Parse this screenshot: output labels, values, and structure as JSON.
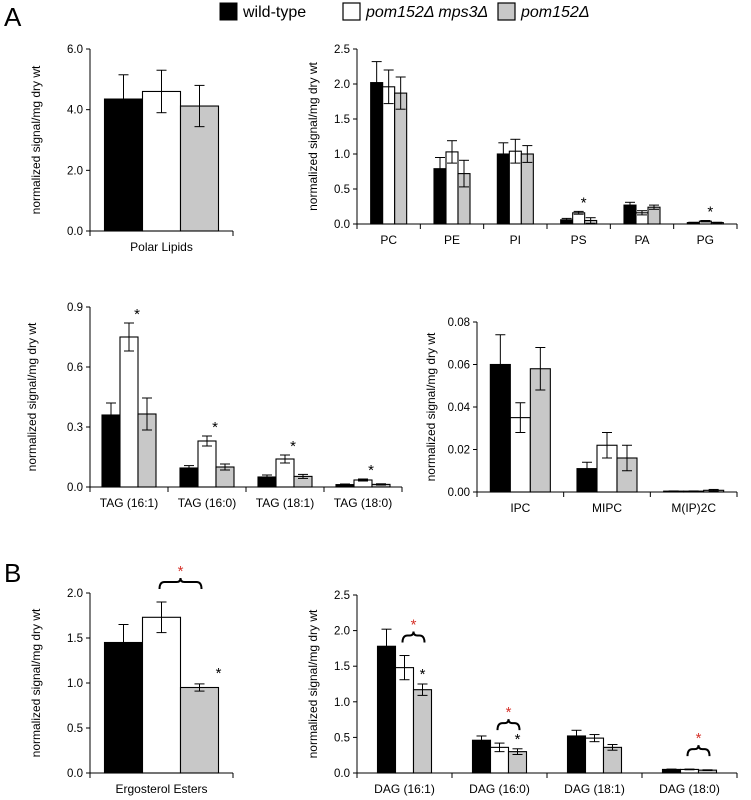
{
  "panels": [
    {
      "letter": "A"
    },
    {
      "letter": "B"
    }
  ],
  "legend": [
    {
      "label": "wild-type",
      "italic": false,
      "color": "#000000"
    },
    {
      "label": "pom152Δ mps3Δ",
      "italic": true,
      "color": "#ffffff"
    },
    {
      "label": "pom152Δ",
      "italic": true,
      "color": "#c8c8c8"
    }
  ],
  "chart_data": [
    {
      "type": "bar",
      "panel": "A",
      "title": "",
      "categories": [
        "Polar Lipids"
      ],
      "xlabel": "",
      "ylabel": "normalized signal/mg dry wt",
      "ylim": [
        0,
        6
      ],
      "yticks": [
        "0.0",
        "2.0",
        "4.0",
        "6.0"
      ],
      "series": [
        {
          "name": "wild-type",
          "values": [
            4.35
          ],
          "err": [
            0.8
          ]
        },
        {
          "name": "pom152Δ mps3Δ",
          "values": [
            4.6
          ],
          "err": [
            0.7
          ]
        },
        {
          "name": "pom152Δ",
          "values": [
            4.12
          ],
          "err": [
            0.68
          ]
        }
      ],
      "annotations": []
    },
    {
      "type": "bar",
      "panel": "A",
      "title": "",
      "categories": [
        "PC",
        "PE",
        "PI",
        "PS",
        "PA",
        "PG"
      ],
      "xlabel": "",
      "ylabel": "normalized signal/mg dry wt",
      "ylim": [
        0,
        2.5
      ],
      "yticks": [
        "0.0",
        "0.5",
        "1.0",
        "1.5",
        "2.0",
        "2.5"
      ],
      "series": [
        {
          "name": "wild-type",
          "values": [
            2.02,
            0.79,
            1.0,
            0.06,
            0.27,
            0.02
          ],
          "err": [
            0.3,
            0.16,
            0.16,
            0.02,
            0.04,
            0.005
          ]
        },
        {
          "name": "pom152Δ mps3Δ",
          "values": [
            1.96,
            1.03,
            1.04,
            0.16,
            0.16,
            0.04
          ],
          "err": [
            0.24,
            0.16,
            0.17,
            0.02,
            0.03,
            0.01
          ]
        },
        {
          "name": "pom152Δ",
          "values": [
            1.87,
            0.72,
            1.0,
            0.05,
            0.24,
            0.02
          ],
          "err": [
            0.23,
            0.19,
            0.12,
            0.04,
            0.03,
            0.005
          ]
        }
      ],
      "annotations": [
        {
          "category": "PS",
          "text": "*",
          "color": "#000000"
        },
        {
          "category": "PG",
          "text": "*",
          "color": "#000000"
        }
      ]
    },
    {
      "type": "bar",
      "panel": "A",
      "title": "",
      "categories": [
        "TAG (16:1)",
        "TAG (16:0)",
        "TAG (18:1)",
        "TAG (18:0)"
      ],
      "xlabel": "",
      "ylabel": "normalized signal/mg dry wt",
      "ylim": [
        0,
        0.9
      ],
      "yticks": [
        "0.0",
        "0.3",
        "0.6",
        "0.9"
      ],
      "series": [
        {
          "name": "wild-type",
          "values": [
            0.36,
            0.095,
            0.05,
            0.012
          ],
          "err": [
            0.06,
            0.012,
            0.01,
            0.003
          ]
        },
        {
          "name": "pom152Δ mps3Δ",
          "values": [
            0.75,
            0.23,
            0.14,
            0.035
          ],
          "err": [
            0.07,
            0.025,
            0.02,
            0.005
          ]
        },
        {
          "name": "pom152Δ",
          "values": [
            0.365,
            0.1,
            0.053,
            0.013
          ],
          "err": [
            0.08,
            0.015,
            0.01,
            0.003
          ]
        }
      ],
      "annotations": [
        {
          "category": "TAG (16:1)",
          "text": "*",
          "color": "#000000"
        },
        {
          "category": "TAG (16:0)",
          "text": "*",
          "color": "#000000"
        },
        {
          "category": "TAG (18:1)",
          "text": "*",
          "color": "#000000"
        },
        {
          "category": "TAG (18:0)",
          "text": "*",
          "color": "#000000"
        }
      ]
    },
    {
      "type": "bar",
      "panel": "A",
      "title": "",
      "categories": [
        "IPC",
        "MIPC",
        "M(IP)2C"
      ],
      "xlabel": "",
      "ylabel": "normalized signal/mg dry wt",
      "ylim": [
        0,
        0.08
      ],
      "yticks": [
        "0.00",
        "0.02",
        "0.04",
        "0.06",
        "0.08"
      ],
      "series": [
        {
          "name": "wild-type",
          "values": [
            0.06,
            0.011,
            0.0004
          ],
          "err": [
            0.014,
            0.003,
            0.0001
          ]
        },
        {
          "name": "pom152Δ mps3Δ",
          "values": [
            0.035,
            0.022,
            0.0004
          ],
          "err": [
            0.007,
            0.006,
            0.0001
          ]
        },
        {
          "name": "pom152Δ",
          "values": [
            0.058,
            0.016,
            0.0008
          ],
          "err": [
            0.01,
            0.006,
            0.0004
          ]
        }
      ],
      "annotations": []
    },
    {
      "type": "bar",
      "panel": "B",
      "title": "",
      "categories": [
        "Ergosterol Esters"
      ],
      "xlabel": "",
      "ylabel": "normalized signal/mg dry wt",
      "ylim": [
        0,
        2
      ],
      "yticks": [
        "0.0",
        "0.5",
        "1.0",
        "1.5",
        "2.0"
      ],
      "series": [
        {
          "name": "wild-type",
          "values": [
            1.45
          ],
          "err": [
            0.2
          ]
        },
        {
          "name": "pom152Δ mps3Δ",
          "values": [
            1.73
          ],
          "err": [
            0.17
          ]
        },
        {
          "name": "pom152Δ",
          "values": [
            0.95
          ],
          "err": [
            0.04
          ]
        }
      ],
      "annotations": [
        {
          "category": "Ergosterol Esters",
          "text": "*",
          "color": "#000000"
        },
        {
          "category": "Ergosterol Esters",
          "text": "*",
          "color": "#d6332b",
          "bracket": true
        }
      ]
    },
    {
      "type": "bar",
      "panel": "B",
      "title": "",
      "categories": [
        "DAG (16:1)",
        "DAG (16:0)",
        "DAG (18:1)",
        "DAG (18:0)"
      ],
      "xlabel": "",
      "ylabel": "normalized signal/mg dry wt",
      "ylim": [
        0,
        2.5
      ],
      "yticks": [
        "0.0",
        "0.5",
        "1.0",
        "1.5",
        "2.0",
        "2.5"
      ],
      "series": [
        {
          "name": "wild-type",
          "values": [
            1.78,
            0.46,
            0.52,
            0.05
          ],
          "err": [
            0.24,
            0.06,
            0.08,
            0.005
          ]
        },
        {
          "name": "pom152Δ mps3Δ",
          "values": [
            1.48,
            0.36,
            0.49,
            0.05
          ],
          "err": [
            0.17,
            0.06,
            0.05,
            0.005
          ]
        },
        {
          "name": "pom152Δ",
          "values": [
            1.17,
            0.3,
            0.36,
            0.04
          ],
          "err": [
            0.08,
            0.04,
            0.04,
            0.005
          ]
        }
      ],
      "annotations": [
        {
          "category": "DAG (16:1)",
          "text": "*",
          "color": "#000000"
        },
        {
          "category": "DAG (16:0)",
          "text": "*",
          "color": "#000000"
        },
        {
          "category": "DAG (16:1)",
          "text": "*",
          "color": "#d6332b",
          "bracket": true
        },
        {
          "category": "DAG (16:0)",
          "text": "*",
          "color": "#d6332b",
          "bracket": true
        },
        {
          "category": "DAG (18:0)",
          "text": "*",
          "color": "#d6332b",
          "bracket": true
        }
      ]
    }
  ]
}
